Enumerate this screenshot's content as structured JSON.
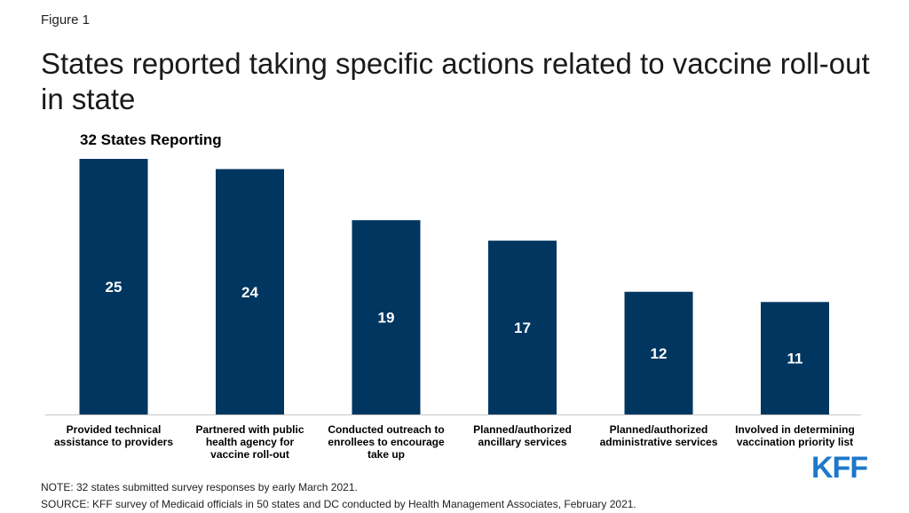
{
  "figure_label": "Figure 1",
  "title": "States reported taking specific actions related to vaccine roll-out in state",
  "note": "NOTE: 32 states submitted survey responses by early March 2021.",
  "source": "SOURCE: KFF survey of Medicaid officials in 50 states and DC conducted by Health Management Associates, February 2021.",
  "logo_text": "KFF",
  "colors": {
    "bar": "#003660",
    "bar_label": "#ffffff",
    "axis": "#c8c8c8",
    "logo": "#1f78c8"
  },
  "chart_data": {
    "type": "bar",
    "title": "32 States Reporting",
    "categories": [
      "Provided technical assistance to providers",
      "Partnered with public health agency for vaccine roll-out",
      "Conducted outreach to enrollees to encourage take up",
      "Planned/authorized ancillary services",
      "Planned/authorized administrative services",
      "Involved in determining vaccination priority list"
    ],
    "category_lines": [
      [
        "Provided technical",
        "assistance to providers"
      ],
      [
        "Partnered with public",
        "health agency for",
        "vaccine roll-out"
      ],
      [
        "Conducted outreach to",
        "enrollees to encourage",
        "take up"
      ],
      [
        "Planned/authorized",
        "ancillary services"
      ],
      [
        "Planned/authorized",
        "administrative services"
      ],
      [
        "Involved in determining",
        "vaccination priority list"
      ]
    ],
    "values": [
      25,
      24,
      19,
      17,
      12,
      11
    ],
    "xlabel": "",
    "ylabel": "",
    "ylim": [
      0,
      25
    ],
    "grid": false,
    "legend": "none"
  }
}
